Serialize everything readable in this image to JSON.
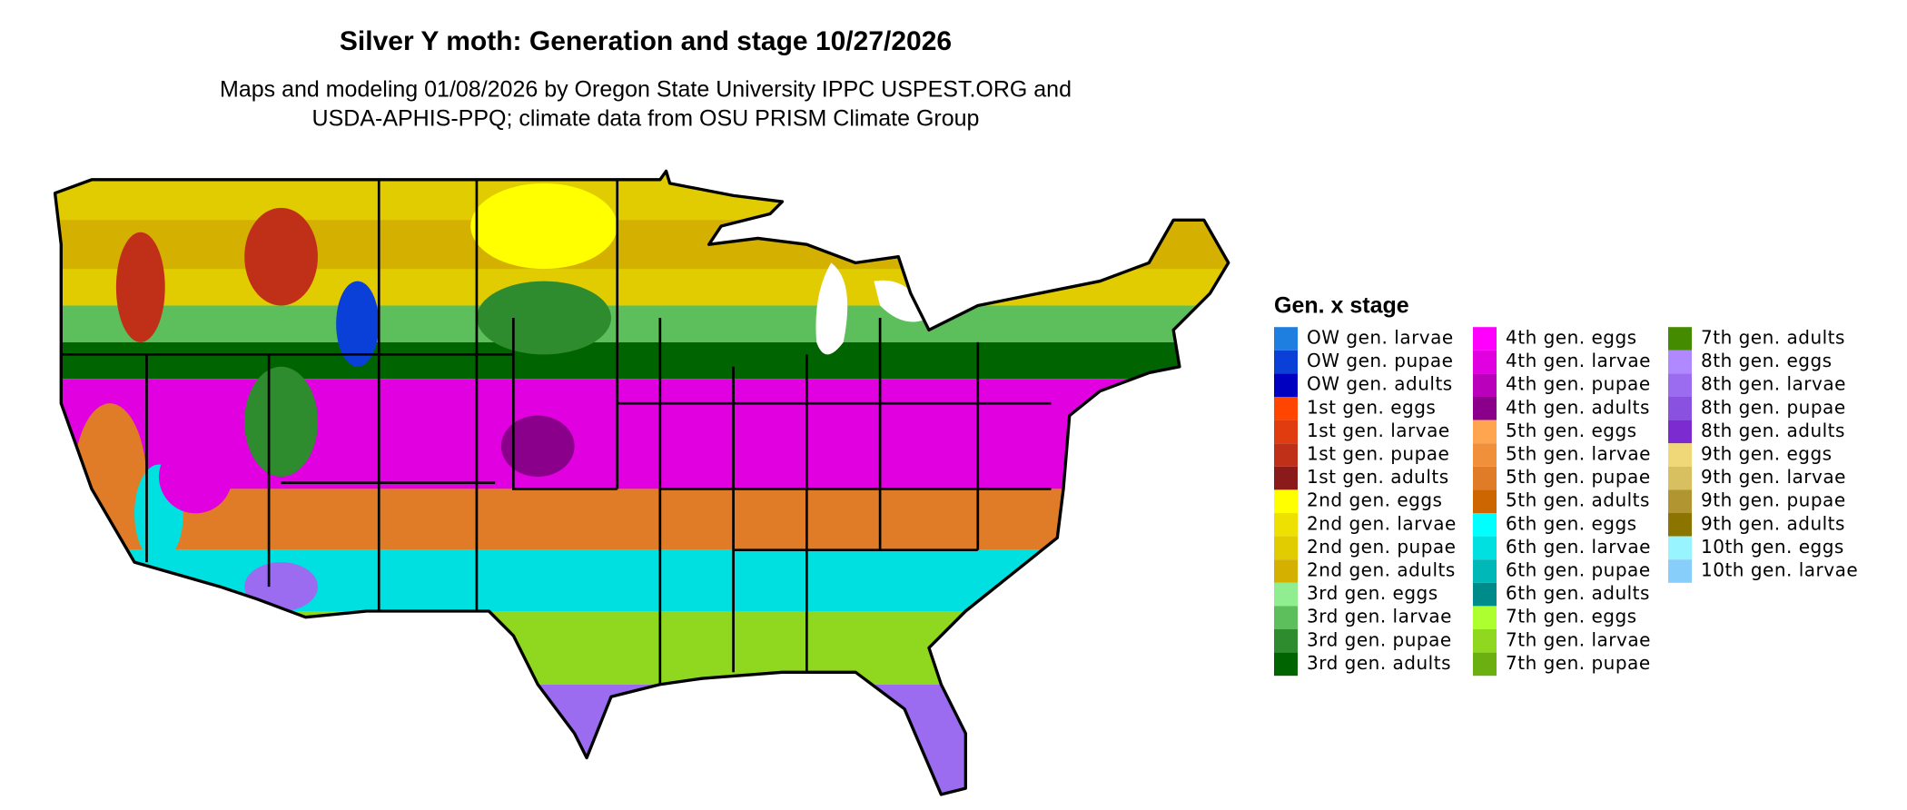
{
  "title": "Silver Y moth: Generation and stage 10/27/2026",
  "subtitle": [
    "Maps and modeling 01/08/2026 by Oregon State University IPPC USPEST.ORG and",
    "USDA-APHIS-PPQ; climate data from OSU PRISM Climate Group"
  ],
  "legend": {
    "title": "Gen. x stage",
    "items": [
      {
        "label": "OW gen. larvae",
        "color": "#1E7FE0"
      },
      {
        "label": "OW gen. pupae",
        "color": "#0A40D8"
      },
      {
        "label": "OW gen. adults",
        "color": "#0000C0"
      },
      {
        "label": "1st gen. eggs",
        "color": "#FF4500"
      },
      {
        "label": "1st gen. larvae",
        "color": "#E03C10"
      },
      {
        "label": "1st gen. pupae",
        "color": "#C03018"
      },
      {
        "label": "1st gen. adults",
        "color": "#8B1A1A"
      },
      {
        "label": "2nd gen. eggs",
        "color": "#FFFF00"
      },
      {
        "label": "2nd gen. larvae",
        "color": "#EEE000"
      },
      {
        "label": "2nd gen. pupae",
        "color": "#E0CC00"
      },
      {
        "label": "2nd gen. adults",
        "color": "#D4B000"
      },
      {
        "label": "3rd gen. eggs",
        "color": "#90EE90"
      },
      {
        "label": "3rd gen. larvae",
        "color": "#5CBF5C"
      },
      {
        "label": "3rd gen. pupae",
        "color": "#2E8B2E"
      },
      {
        "label": "3rd gen. adults",
        "color": "#006400"
      },
      {
        "label": "4th gen. eggs",
        "color": "#FF00FF"
      },
      {
        "label": "4th gen. larvae",
        "color": "#E000E0"
      },
      {
        "label": "4th gen. pupae",
        "color": "#BB00BB"
      },
      {
        "label": "4th gen. adults",
        "color": "#8B008B"
      },
      {
        "label": "5th gen. eggs",
        "color": "#FFA54F"
      },
      {
        "label": "5th gen. larvae",
        "color": "#F0903A"
      },
      {
        "label": "5th gen. pupae",
        "color": "#E07B28"
      },
      {
        "label": "5th gen. adults",
        "color": "#CD6600"
      },
      {
        "label": "6th gen. eggs",
        "color": "#00FFFF"
      },
      {
        "label": "6th gen. larvae",
        "color": "#00E0E0"
      },
      {
        "label": "6th gen. pupae",
        "color": "#00B8B8"
      },
      {
        "label": "6th gen. adults",
        "color": "#008B8B"
      },
      {
        "label": "7th gen. eggs",
        "color": "#ADFF2F"
      },
      {
        "label": "7th gen. larvae",
        "color": "#90D820"
      },
      {
        "label": "7th gen. pupae",
        "color": "#6BB010"
      },
      {
        "label": "7th gen. adults",
        "color": "#458B00"
      },
      {
        "label": "8th gen. eggs",
        "color": "#B088FF"
      },
      {
        "label": "8th gen. larvae",
        "color": "#9B6BF0"
      },
      {
        "label": "8th gen. pupae",
        "color": "#8A50E0"
      },
      {
        "label": "8th gen. adults",
        "color": "#7B2BD0"
      },
      {
        "label": "9th gen. eggs",
        "color": "#F0D878"
      },
      {
        "label": "9th gen. larvae",
        "color": "#D8C060"
      },
      {
        "label": "9th gen. pupae",
        "color": "#B09530"
      },
      {
        "label": "9th gen. adults",
        "color": "#8B7500"
      },
      {
        "label": "10th gen. eggs",
        "color": "#98F5FF"
      },
      {
        "label": "10th gen. larvae",
        "color": "#87CEFA"
      }
    ]
  }
}
